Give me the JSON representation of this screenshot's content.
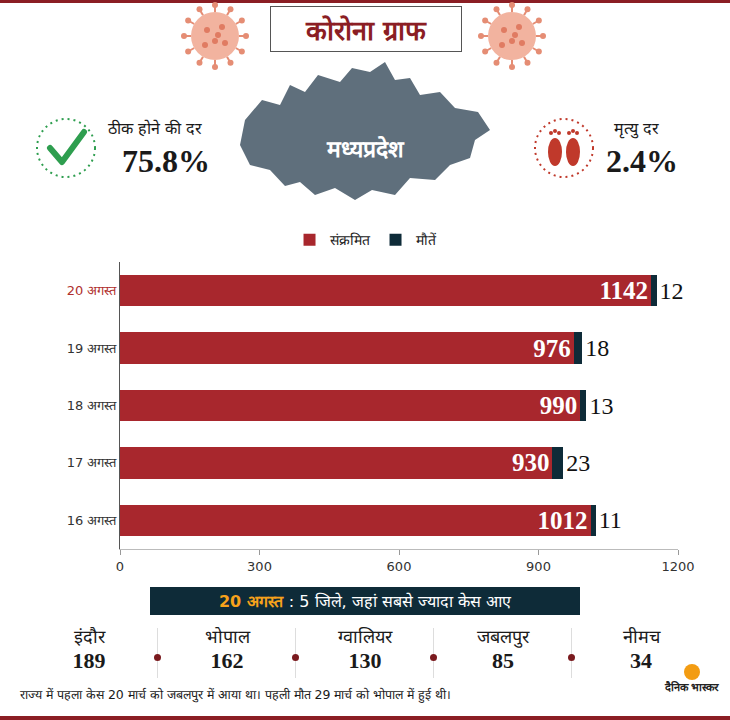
{
  "header": {
    "title": "कोरोना ग्राफ",
    "state": "मध्यप्रदेश"
  },
  "stats": {
    "recovery": {
      "label": "ठीक होने की दर",
      "value": "75.8%"
    },
    "mortality": {
      "label": "मृत्यु दर",
      "value": "2.4%"
    }
  },
  "chart_data": {
    "type": "bar",
    "orientation": "horizontal",
    "stacked": true,
    "data_labels": true,
    "grid": false,
    "legend": "top",
    "categories": [
      "20 अगस्त",
      "19 अगस्त",
      "18 अगस्त",
      "17 अगस्त",
      "16 अगस्त"
    ],
    "series": [
      {
        "name": "संक्रमित",
        "color": "#a8272d",
        "values": [
          1142,
          976,
          990,
          930,
          1012
        ]
      },
      {
        "name": "मौतें",
        "color": "#0e2b38",
        "values": [
          12,
          18,
          13,
          23,
          11
        ]
      }
    ],
    "xlim": [
      0,
      1200
    ],
    "xticks": [
      0,
      300,
      600,
      900,
      1200
    ]
  },
  "districts": {
    "date": "20 अगस्त",
    "heading": ": 5 जिले, जहां सबसे ज्यादा केस आए",
    "items": [
      {
        "name": "इंदौर",
        "cases": 189
      },
      {
        "name": "भोपाल",
        "cases": 162
      },
      {
        "name": "ग्वालियर",
        "cases": 130
      },
      {
        "name": "जबलपुर",
        "cases": 85
      },
      {
        "name": "नीमच",
        "cases": 34
      }
    ]
  },
  "footer": "राज्य में पहला केस 20 मार्च को जबलपुर में आया था। पहली मौत 29 मार्च को भोपाल में हुई थी।",
  "source": "दैनिक भास्कर"
}
